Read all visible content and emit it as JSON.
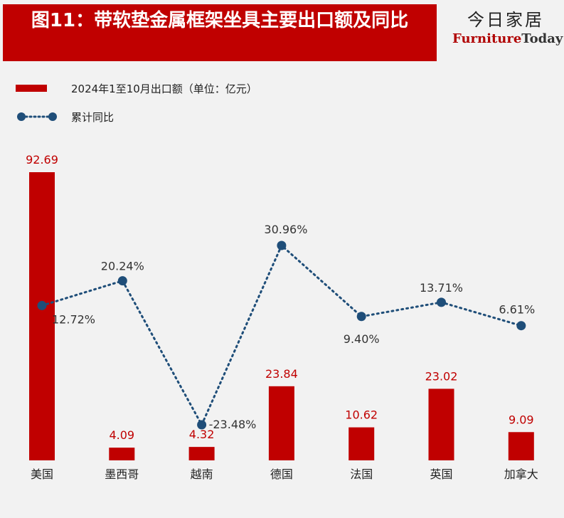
{
  "header": {
    "title": "图11：带软垫金属框架坐具主要出口额及同比",
    "brand_cn": "今日家居",
    "brand_en_1": "Furniture",
    "brand_en_2": "Today"
  },
  "legend": {
    "bar_label": "2024年1至10月出口额（单位：亿元）",
    "line_label": "累计同比"
  },
  "colors": {
    "bar": "#c00000",
    "line": "#1f4e79",
    "value_label": "#c00000",
    "background": "#f2f2f2"
  },
  "chart_data": {
    "type": "bar",
    "categories": [
      "美国",
      "墨西哥",
      "越南",
      "德国",
      "法国",
      "英国",
      "加拿大"
    ],
    "series": [
      {
        "name": "2024年1至10月出口额（单位：亿元）",
        "type": "bar",
        "values": [
          92.69,
          4.09,
          4.32,
          23.84,
          10.62,
          23.02,
          9.09
        ],
        "labels": [
          "92.69",
          "4.09",
          "4.32",
          "23.84",
          "10.62",
          "23.02",
          "9.09"
        ]
      },
      {
        "name": "累计同比",
        "type": "line",
        "values": [
          12.72,
          20.24,
          -23.48,
          30.96,
          9.4,
          13.71,
          6.61
        ],
        "labels": [
          "12.72%",
          "20.24%",
          "-23.48%",
          "30.96%",
          "9.40%",
          "13.71%",
          "6.61%"
        ]
      }
    ],
    "ylim_bar": [
      0,
      92.69
    ],
    "ylim_line": [
      -26,
      31
    ],
    "legend_position": "top-left",
    "grid": false
  }
}
